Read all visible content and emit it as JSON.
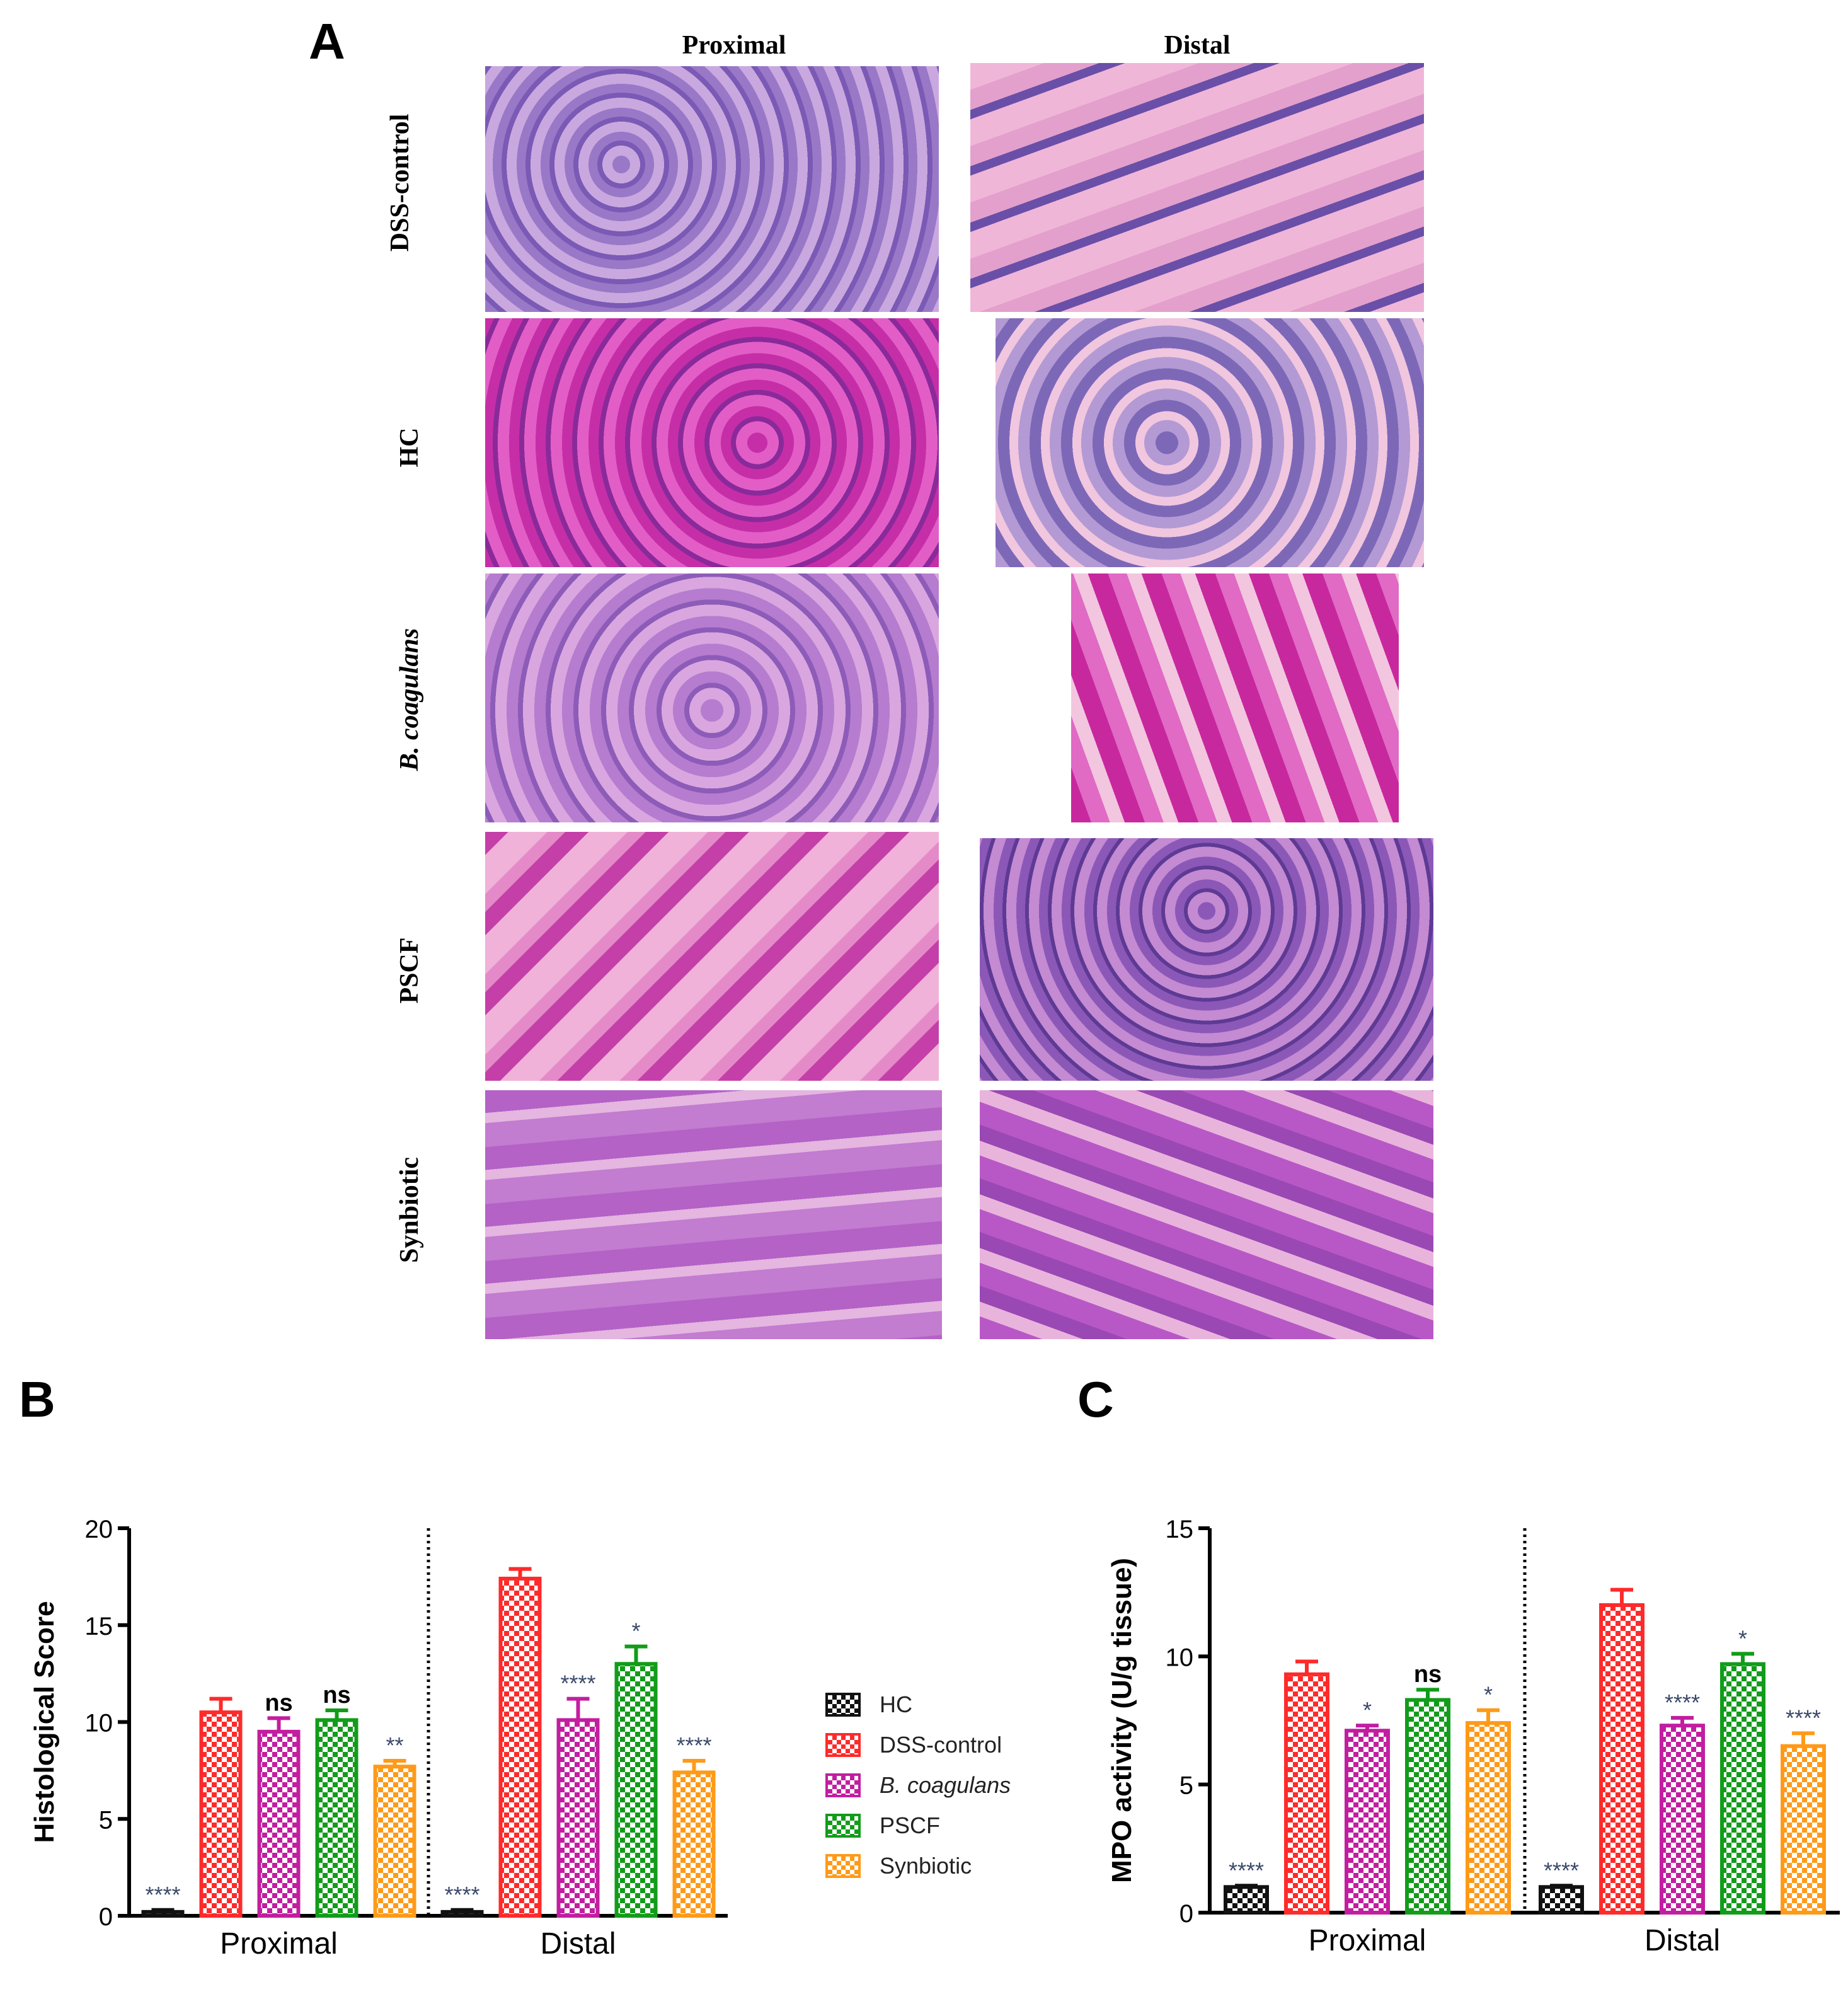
{
  "panel_a": {
    "letter": "A",
    "columns": [
      "Proximal",
      "Distal"
    ],
    "rows": [
      "DSS-control",
      "HC",
      "B. coagulans",
      "PSCF",
      "Synbiotic"
    ]
  },
  "legend": {
    "items": [
      {
        "label": "HC",
        "color": "#111111",
        "italic": false
      },
      {
        "label": "DSS-control",
        "color": "#ff2a2a",
        "italic": false
      },
      {
        "label": "B. coagulans",
        "color": "#c21ea0",
        "italic": true
      },
      {
        "label": "PSCF",
        "color": "#129c1a",
        "italic": false
      },
      {
        "label": "Synbiotic",
        "color": "#ff9a18",
        "italic": false
      }
    ]
  },
  "chart_data": [
    {
      "panel": "B",
      "type": "bar",
      "ylabel": "Histological Score",
      "ylim": [
        0,
        20
      ],
      "yticks": [
        0,
        5,
        10,
        15,
        20
      ],
      "categories": [
        "Proximal",
        "Distal"
      ],
      "series": [
        {
          "name": "HC",
          "values": [
            0.2,
            0.2
          ],
          "errors": [
            0.1,
            0.1
          ],
          "sig": [
            "****",
            "****"
          ]
        },
        {
          "name": "DSS-control",
          "values": [
            10.5,
            17.4
          ],
          "errors": [
            0.7,
            0.5
          ],
          "sig": [
            "",
            ""
          ]
        },
        {
          "name": "B. coagulans",
          "values": [
            9.5,
            10.1
          ],
          "errors": [
            0.7,
            1.1
          ],
          "sig": [
            "ns",
            "****"
          ]
        },
        {
          "name": "PSCF",
          "values": [
            10.1,
            13.0
          ],
          "errors": [
            0.5,
            0.9
          ],
          "sig": [
            "ns",
            "*"
          ]
        },
        {
          "name": "Synbiotic",
          "values": [
            7.7,
            7.4
          ],
          "errors": [
            0.3,
            0.6
          ],
          "sig": [
            "**",
            "****"
          ]
        }
      ]
    },
    {
      "panel": "C",
      "type": "bar",
      "ylabel": "MPO activity (U/g tissue)",
      "ylim": [
        0,
        15
      ],
      "yticks": [
        0,
        5,
        10,
        15
      ],
      "categories": [
        "Proximal",
        "Distal"
      ],
      "series": [
        {
          "name": "HC",
          "values": [
            1.0,
            1.0
          ],
          "errors": [
            0.05,
            0.05
          ],
          "sig": [
            "****",
            "****"
          ]
        },
        {
          "name": "DSS-control",
          "values": [
            9.3,
            12.0
          ],
          "errors": [
            0.5,
            0.6
          ],
          "sig": [
            "",
            ""
          ]
        },
        {
          "name": "B. coagulans",
          "values": [
            7.1,
            7.3
          ],
          "errors": [
            0.2,
            0.3
          ],
          "sig": [
            "*",
            "****"
          ]
        },
        {
          "name": "PSCF",
          "values": [
            8.3,
            9.7
          ],
          "errors": [
            0.4,
            0.4
          ],
          "sig": [
            "ns",
            "*"
          ]
        },
        {
          "name": "Synbiotic",
          "values": [
            7.4,
            6.5
          ],
          "errors": [
            0.5,
            0.5
          ],
          "sig": [
            "*",
            "****"
          ]
        }
      ]
    }
  ]
}
